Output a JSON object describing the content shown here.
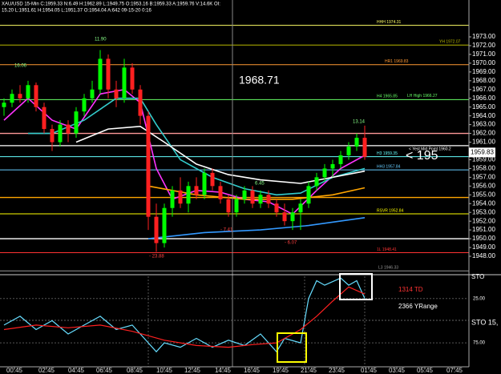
{
  "chart_data": [
    {
      "type": "candlestick",
      "header": [
        "XAU/USD 15-Min C:1959.33 N:6.49 H:1962.89 L:1949.75 O:1953.16 B:1959.33 A:1959.76 V:14.6K OI:",
        "15.20 L:1951.61 H:1954.05 L:1951.37 O:1954.04 A:642 09-15-20 0:16"
      ],
      "up_color": "#00ff00",
      "down_color": "#ff2020",
      "xlim": [
        -0.5,
        58
      ],
      "ylim": [
        1945.9,
        1977.2
      ],
      "yticks": [
        {
          "value": 1948,
          "label": "1948.00"
        },
        {
          "value": 1949,
          "label": "1949.00"
        },
        {
          "value": 1950,
          "label": "1950.00"
        },
        {
          "value": 1951,
          "label": "1951.00"
        },
        {
          "value": 1952,
          "label": "1952.00"
        },
        {
          "value": 1953,
          "label": "1953.00"
        },
        {
          "value": 1954,
          "label": "1954.00"
        },
        {
          "value": 1955,
          "label": "1955.00"
        },
        {
          "value": 1956,
          "label": "1956.00"
        },
        {
          "value": 1957,
          "label": "1957.00"
        },
        {
          "value": 1958,
          "label": "1958.00"
        },
        {
          "value": 1959,
          "label": "1959.00"
        },
        {
          "value": 1960,
          "label": "1960.00"
        },
        {
          "value": 1961,
          "label": "1961.00"
        },
        {
          "value": 1962,
          "label": "1962.00"
        },
        {
          "value": 1963,
          "label": "1963.00"
        },
        {
          "value": 1964,
          "label": "1964.00"
        },
        {
          "value": 1965,
          "label": "1965.00"
        },
        {
          "value": 1966,
          "label": "1966.00"
        },
        {
          "value": 1967,
          "label": "1967.00"
        },
        {
          "value": 1968,
          "label": "1968.00"
        },
        {
          "value": 1969,
          "label": "1969.00"
        },
        {
          "value": 1970,
          "label": "1970.00"
        },
        {
          "value": 1971,
          "label": "1971.00"
        },
        {
          "value": 1972,
          "label": "1972.00"
        },
        {
          "value": 1973,
          "label": "1973.00"
        }
      ],
      "ohlc": [
        [
          1965,
          1966,
          1964,
          1965.5
        ],
        [
          1965.5,
          1967,
          1965,
          1966.5
        ],
        [
          1966.5,
          1967.5,
          1965.5,
          1966
        ],
        [
          1966,
          1968,
          1965.5,
          1967.5
        ],
        [
          1967.5,
          1967.8,
          1964.5,
          1965
        ],
        [
          1965,
          1965.5,
          1962,
          1962.5
        ],
        [
          1962.5,
          1963,
          1960,
          1961
        ],
        [
          1961,
          1963.5,
          1960.5,
          1963
        ],
        [
          1963,
          1963.5,
          1961,
          1962
        ],
        [
          1962,
          1965,
          1961.5,
          1964.5
        ],
        [
          1964.5,
          1966.5,
          1964,
          1966
        ],
        [
          1966,
          1968,
          1965.5,
          1967
        ],
        [
          1967,
          1971.5,
          1966.5,
          1970.5
        ],
        [
          1970.5,
          1971,
          1966,
          1967
        ],
        [
          1967,
          1968,
          1965,
          1966
        ],
        [
          1966,
          1970.5,
          1965.5,
          1969.5
        ],
        [
          1969.5,
          1970,
          1966.5,
          1967
        ],
        [
          1967,
          1967.5,
          1963,
          1964
        ],
        [
          1964,
          1964.5,
          1951,
          1952.5
        ],
        [
          1952.5,
          1954,
          1948.5,
          1949.5
        ],
        [
          1949.5,
          1954,
          1949,
          1953.5
        ],
        [
          1953.5,
          1956,
          1952.5,
          1955.5
        ],
        [
          1955.5,
          1957,
          1953.5,
          1954
        ],
        [
          1954,
          1956.5,
          1953,
          1956
        ],
        [
          1956,
          1957,
          1954.5,
          1955
        ],
        [
          1955,
          1958,
          1954.5,
          1957.5
        ],
        [
          1957.5,
          1958,
          1955.5,
          1956
        ],
        [
          1956,
          1956.5,
          1954,
          1954.5
        ],
        [
          1954.5,
          1955,
          1952.5,
          1953
        ],
        [
          1953,
          1955,
          1952.5,
          1954.5
        ],
        [
          1954.5,
          1956,
          1954,
          1955.5
        ],
        [
          1955.5,
          1956,
          1953.5,
          1954
        ],
        [
          1954,
          1955.5,
          1953.5,
          1955
        ],
        [
          1955,
          1955.5,
          1953.5,
          1954
        ],
        [
          1954,
          1954.5,
          1952.5,
          1953
        ],
        [
          1953,
          1954,
          1951.5,
          1952
        ],
        [
          1952,
          1953.5,
          1951,
          1953
        ],
        [
          1953,
          1954.5,
          1951,
          1954
        ],
        [
          1954,
          1956.5,
          1953.5,
          1956
        ],
        [
          1956,
          1957.5,
          1955.5,
          1957
        ],
        [
          1957,
          1958.5,
          1956.5,
          1958
        ],
        [
          1958,
          1959,
          1957,
          1958.5
        ],
        [
          1958.5,
          1960,
          1958,
          1959.5
        ],
        [
          1959.5,
          1961,
          1959,
          1960.5
        ],
        [
          1960.5,
          1962,
          1960,
          1961.5
        ],
        [
          1961.5,
          1962.89,
          1959,
          1959.33
        ]
      ],
      "series": [
        {
          "color": "#ff33ff",
          "x": [
            0,
            3,
            6,
            9,
            12,
            15,
            17,
            19,
            21,
            24,
            27,
            30,
            33,
            36,
            39,
            42,
            45
          ],
          "values": [
            1963.5,
            1966,
            1963.5,
            1962.5,
            1966.5,
            1967,
            1965.5,
            1958,
            1954.5,
            1955.5,
            1955.3,
            1954.5,
            1954.2,
            1952.8,
            1955.5,
            1958,
            1959.5
          ]
        },
        {
          "color": "#33cccc",
          "x": [
            3,
            6,
            10,
            14,
            17,
            19,
            22,
            26,
            30,
            34,
            37,
            41,
            45
          ],
          "values": [
            1962,
            1962,
            1963.5,
            1966,
            1966,
            1963,
            1959,
            1957,
            1955.7,
            1955,
            1955.2,
            1957,
            1958
          ]
        },
        {
          "color": "#ffffff",
          "x": [
            9,
            13,
            17,
            20,
            24,
            28,
            32,
            37,
            41,
            45
          ],
          "values": [
            1961,
            1962.5,
            1962.8,
            1961,
            1958.5,
            1957.3,
            1956.7,
            1956.3,
            1957,
            1957.7
          ]
        },
        {
          "color": "#ffa500",
          "x": [
            18,
            24,
            30,
            36,
            41,
            45
          ],
          "values": [
            1956,
            1955,
            1954.5,
            1954.5,
            1955,
            1955.8
          ]
        },
        {
          "color": "#3399ff",
          "x": [
            18,
            25,
            32,
            38,
            45
          ],
          "values": [
            1950,
            1950.7,
            1951,
            1951.5,
            1952.4
          ]
        }
      ],
      "levels": [
        {
          "label": "HHH 1974.31",
          "value": 1974.31,
          "color": "#ffff66"
        },
        {
          "label": "YH 1972.07",
          "value": 1972.07,
          "color": "#b8b800"
        },
        {
          "label": "HR1 1969.83",
          "value": 1969.83,
          "color": "#ff9933"
        },
        {
          "label": "H4 1965.85",
          "value": 1965.85,
          "color": "#66ff66"
        },
        {
          "label": "H3 1959.35",
          "value": 1959.35,
          "color": "#66ffff"
        },
        {
          "label": "HH3 1957.84",
          "value": 1957.84,
          "color": "#66ccff"
        },
        {
          "label": "RSVR 1952.84",
          "value": 1952.84,
          "color": "#ffff00"
        },
        {
          "label": "1L 1948.41",
          "value": 1948.41,
          "color": "#ff3333"
        },
        {
          "label": "L3 1946.33",
          "value": 1946.33,
          "color": "#999999"
        }
      ],
      "lines": [
        {
          "value": 1962.0,
          "color": "#ff9999"
        },
        {
          "value": 1960.6,
          "color": "#ffffff"
        },
        {
          "value": 1954.7,
          "color": "#ffa500"
        },
        {
          "value": 1950.0,
          "color": "#ffffff"
        }
      ],
      "price_notes": [
        {
          "text": "LH High 1966.27",
          "value": 1966.27,
          "color": "#66ff66"
        },
        {
          "text": "< Yest Mid Point 1960.2",
          "value": 1960.2,
          "color": "#ffffff"
        }
      ],
      "last_price": 1959.83,
      "annotations": [
        "11.90",
        "16.06",
        "13.14",
        "- 23.88",
        "- 7.41",
        "6.45",
        "- 6.07",
        "1968.71",
        "< 195"
      ]
    },
    {
      "type": "line",
      "title": "STO 15,",
      "corner_label": "STO",
      "texts": [
        "1314 TD",
        "2366 YRange"
      ],
      "xlim": [
        -0.5,
        58
      ],
      "ylim": [
        0,
        102
      ],
      "yticks": [
        {
          "value": 25,
          "label": "25.00"
        },
        {
          "value": 75,
          "label": "75.00"
        }
      ],
      "xticks": [
        {
          "value": 1.3,
          "label": "00:45"
        },
        {
          "value": 5.3,
          "label": "02:45"
        },
        {
          "value": 9,
          "label": "04:45"
        },
        {
          "value": 12.5,
          "label": "06:45"
        },
        {
          "value": 16.3,
          "label": "08:45"
        },
        {
          "value": 20,
          "label": "10:45"
        },
        {
          "value": 23.5,
          "label": "12:45"
        },
        {
          "value": 27.3,
          "label": "14:45"
        },
        {
          "value": 30.9,
          "label": "16:45"
        },
        {
          "value": 34.5,
          "label": "19:45"
        },
        {
          "value": 38,
          "label": "21:45"
        },
        {
          "value": 41.5,
          "label": "23:45"
        },
        {
          "value": 45.5,
          "label": "01:45"
        },
        {
          "value": 49,
          "label": "03:45"
        },
        {
          "value": 52.5,
          "label": "05:45"
        },
        {
          "value": 56.2,
          "label": "07:45"
        }
      ],
      "series": [
        {
          "color": "#66ddff",
          "x": [
            0,
            2,
            4,
            6,
            8,
            10,
            12,
            14,
            16,
            18,
            19,
            20,
            22,
            24,
            26,
            28,
            30,
            32,
            34,
            35,
            37,
            38,
            39,
            40,
            42,
            43,
            44,
            45
          ],
          "values": [
            55,
            45,
            60,
            50,
            65,
            55,
            45,
            60,
            55,
            75,
            85,
            75,
            80,
            70,
            80,
            72,
            78,
            65,
            85,
            70,
            75,
            25,
            5,
            10,
            2,
            10,
            5,
            25
          ]
        },
        {
          "color": "#ff2020",
          "x": [
            0,
            4,
            8,
            12,
            16,
            20,
            24,
            28,
            31,
            34,
            37,
            39,
            41,
            43,
            45
          ],
          "values": [
            60,
            55,
            58,
            55,
            62,
            72,
            78,
            80,
            77,
            75,
            60,
            45,
            28,
            12,
            20
          ]
        }
      ]
    }
  ]
}
